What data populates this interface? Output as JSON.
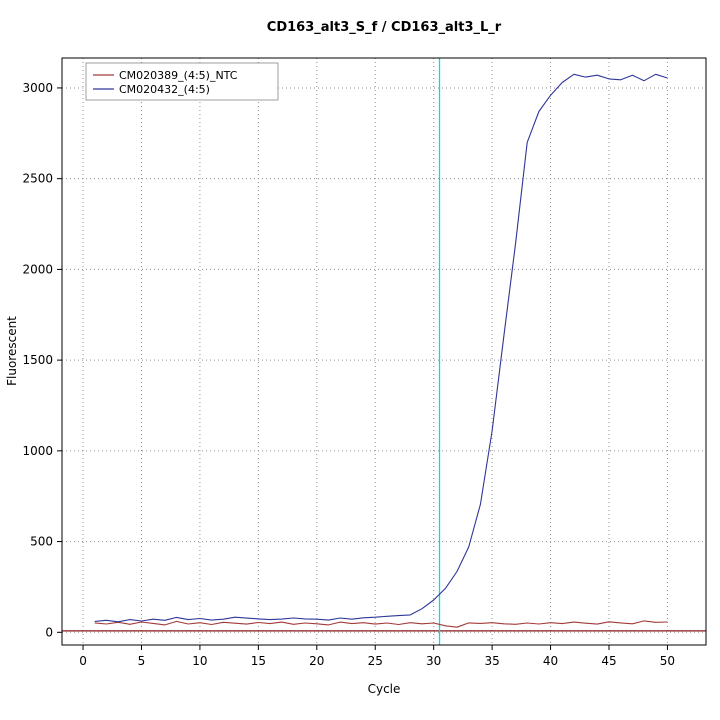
{
  "chart_data": {
    "type": "line",
    "title": "CD163_alt3_S_f / CD163_alt3_L_r",
    "xlabel": "Cycle",
    "ylabel": "Fluorescent",
    "xlim": [
      -1.8,
      53.3
    ],
    "ylim": [
      -70,
      3165
    ],
    "xticks": [
      0,
      5,
      10,
      15,
      20,
      25,
      30,
      35,
      40,
      45,
      50
    ],
    "yticks": [
      0,
      500,
      1000,
      1500,
      2000,
      2500,
      3000
    ],
    "grid": "dotted",
    "grid_color": "#909090",
    "legend_position": "top-left",
    "threshold_line": {
      "y": 8,
      "color": "#8b1a1a"
    },
    "ct_line": {
      "x": 30.5,
      "color": "#00dde6"
    },
    "x": [
      1,
      2,
      3,
      4,
      5,
      6,
      7,
      8,
      9,
      10,
      11,
      12,
      13,
      14,
      15,
      16,
      17,
      18,
      19,
      20,
      21,
      22,
      23,
      24,
      25,
      26,
      27,
      28,
      29,
      30,
      31,
      32,
      33,
      34,
      35,
      36,
      37,
      38,
      39,
      40,
      41,
      42,
      43,
      44,
      45,
      46,
      47,
      48,
      49,
      50
    ],
    "series": [
      {
        "name": "CM020389_(4:5)_NTC",
        "color": "#a33a3a",
        "values": [
          52,
          46,
          55,
          44,
          57,
          49,
          41,
          60,
          46,
          53,
          43,
          55,
          50,
          45,
          54,
          48,
          56,
          44,
          51,
          47,
          41,
          56,
          48,
          53,
          45,
          51,
          43,
          53,
          47,
          51,
          36,
          28,
          52,
          49,
          53,
          47,
          44,
          51,
          46,
          53,
          48,
          56,
          50,
          45,
          58,
          52,
          47,
          63,
          55,
          57
        ]
      },
      {
        "name": "CM020432_(4:5)",
        "color": "#2f3699",
        "values": [
          60,
          66,
          58,
          70,
          62,
          72,
          66,
          82,
          70,
          76,
          67,
          72,
          83,
          78,
          74,
          70,
          73,
          79,
          74,
          72,
          67,
          79,
          72,
          80,
          83,
          88,
          92,
          96,
          130,
          178,
          242,
          335,
          470,
          705,
          1110,
          1630,
          2140,
          2700,
          2870,
          2960,
          3030,
          3075,
          3060,
          3070,
          3050,
          3045,
          3070,
          3040,
          3075,
          3055
        ]
      }
    ]
  }
}
